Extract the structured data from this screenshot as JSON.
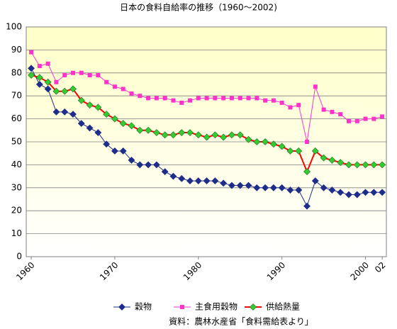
{
  "chart_data": {
    "type": "line",
    "title": "日本の食料自給率の推移（1960～2002)",
    "source": "資料：農林水産省「食料需給表より」",
    "x": [
      1960,
      1961,
      1962,
      1963,
      1964,
      1965,
      1966,
      1967,
      1968,
      1969,
      1970,
      1971,
      1972,
      1973,
      1974,
      1975,
      1976,
      1977,
      1978,
      1979,
      1980,
      1981,
      1982,
      1983,
      1984,
      1985,
      1986,
      1987,
      1988,
      1989,
      1990,
      1991,
      1992,
      1993,
      1994,
      1995,
      1996,
      1997,
      1998,
      1999,
      2000,
      2001,
      2002
    ],
    "xlim": [
      1959.4,
      2002.5
    ],
    "xticks": [
      1960,
      1970,
      1980,
      1990,
      2000,
      {
        "value": 2002,
        "label": "02"
      }
    ],
    "ylim": [
      0,
      100
    ],
    "yticks": [
      0,
      10,
      20,
      30,
      40,
      50,
      60,
      70,
      80,
      90,
      100
    ],
    "grid": true,
    "legend": "bottom",
    "series": [
      {
        "name": "穀物",
        "color": "#1f2d8a",
        "marker": "diamond",
        "marker_color": "#1f2d8a",
        "values": [
          82,
          75,
          73,
          63,
          63,
          62,
          58,
          56,
          54,
          49,
          46,
          46,
          42,
          40,
          40,
          40,
          37,
          35,
          34,
          33,
          33,
          33,
          33,
          32,
          31,
          31,
          31,
          30,
          30,
          30,
          30,
          29,
          29,
          22,
          33,
          30,
          29,
          28,
          27,
          27,
          28,
          28,
          28
        ]
      },
      {
        "name": "主食用穀物",
        "color": "#ff33cc",
        "marker": "square",
        "marker_color": "#ff33cc",
        "values": [
          89,
          83,
          84,
          76,
          79,
          80,
          80,
          79,
          79,
          76,
          74,
          73,
          71,
          70,
          69,
          69,
          69,
          68,
          67,
          68,
          69,
          69,
          69,
          69,
          69,
          69,
          69,
          69,
          68,
          68,
          67,
          65,
          66,
          50,
          74,
          64,
          63,
          62,
          59,
          59,
          60,
          60,
          61
        ]
      },
      {
        "name": "供給熱量",
        "color": "#ff0000",
        "marker": "diamond",
        "marker_color": "#33cc33",
        "values": [
          79,
          78,
          76,
          72,
          72,
          73,
          68,
          66,
          65,
          62,
          60,
          58,
          57,
          55,
          55,
          54,
          53,
          53,
          54,
          54,
          53,
          52,
          53,
          52,
          53,
          53,
          51,
          50,
          50,
          49,
          48,
          46,
          46,
          37,
          46,
          43,
          42,
          41,
          40,
          40,
          40,
          40,
          40
        ]
      }
    ]
  }
}
